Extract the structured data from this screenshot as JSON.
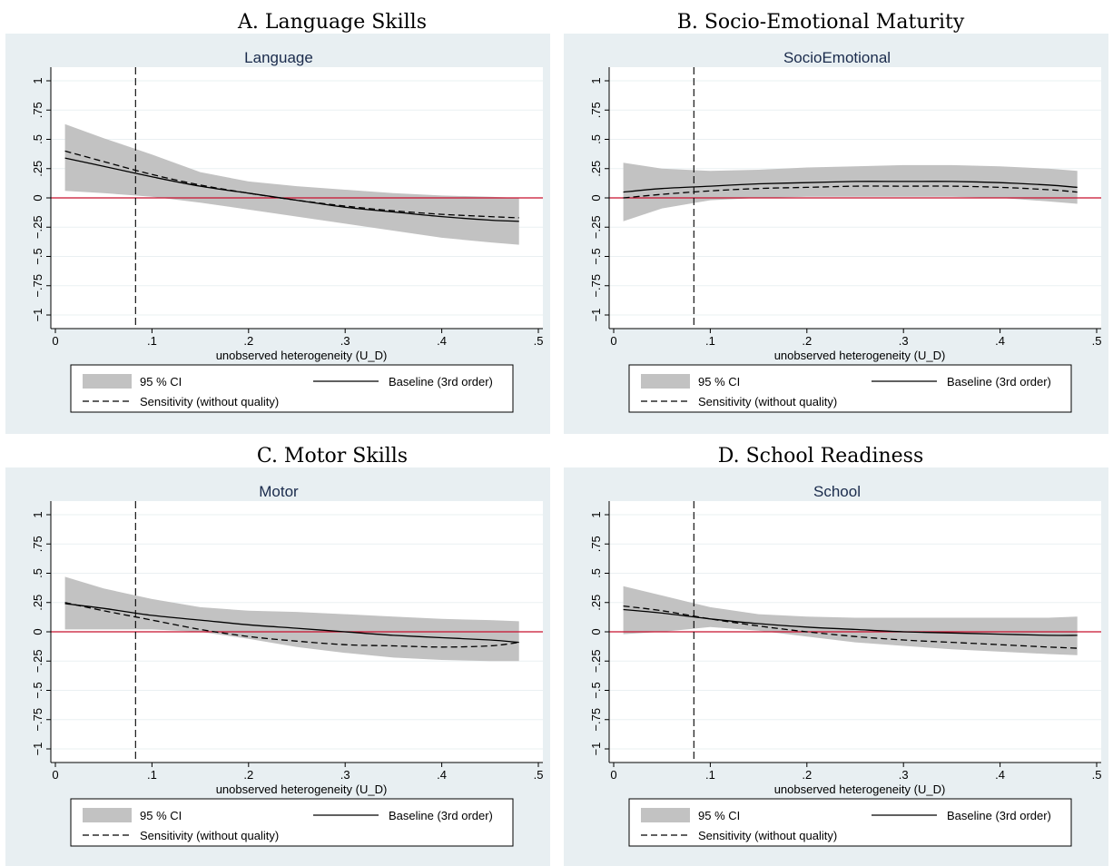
{
  "colors": {
    "graph_region": "#e8eff2",
    "plot_region": "#ffffff",
    "gridline": "#eaf0f2",
    "ci_band": "#c2c2c2",
    "baseline_line": "#000000",
    "sensitivity_line": "#000000",
    "zero_line": "#c8102e",
    "graph_title": "#1a2b4c",
    "frame": "#a9b4b8"
  },
  "legend": {
    "ci_label": "95 % CI",
    "baseline_label": "Baseline (3rd order)",
    "sensitivity_label": "Sensitivity (without quality)"
  },
  "chart_data": [
    {
      "type": "line",
      "heading": "A. Language Skills",
      "title": "Language",
      "xlabel": "unobserved heterogeneity (U_D)",
      "ylabel": "",
      "xlim": [
        0,
        0.5
      ],
      "ylim": [
        -1,
        1
      ],
      "x_ticks": [
        0,
        0.1,
        0.2,
        0.3,
        0.4,
        0.5
      ],
      "x_tick_labels": [
        "0",
        ".1",
        ".2",
        ".3",
        ".4",
        ".5"
      ],
      "y_ticks": [
        -1,
        -0.75,
        -0.5,
        -0.25,
        0,
        0.25,
        0.5,
        0.75,
        1
      ],
      "y_tick_labels": [
        "−1",
        "−.75",
        "−.5",
        "−.25",
        "0",
        ".25",
        ".5",
        ".75",
        "1"
      ],
      "reference_line_x": 0.083,
      "reference_line_y": 0,
      "x": [
        0.01,
        0.05,
        0.1,
        0.15,
        0.2,
        0.25,
        0.3,
        0.35,
        0.4,
        0.45,
        0.48
      ],
      "series": [
        {
          "name": "Baseline (3rd order)",
          "style": "solid",
          "values": [
            0.34,
            0.27,
            0.18,
            0.1,
            0.04,
            -0.02,
            -0.08,
            -0.12,
            -0.16,
            -0.19,
            -0.2
          ]
        },
        {
          "name": "Sensitivity (without quality)",
          "style": "dashed",
          "values": [
            0.4,
            0.31,
            0.2,
            0.11,
            0.04,
            -0.02,
            -0.07,
            -0.11,
            -0.14,
            -0.16,
            -0.17
          ]
        }
      ],
      "ci_lower": [
        0.06,
        0.04,
        0.01,
        -0.04,
        -0.1,
        -0.16,
        -0.22,
        -0.28,
        -0.34,
        -0.38,
        -0.4
      ],
      "ci_upper": [
        0.63,
        0.51,
        0.37,
        0.22,
        0.14,
        0.1,
        0.07,
        0.04,
        0.02,
        0.01,
        0.0
      ]
    },
    {
      "type": "line",
      "heading": "B. Socio-Emotional Maturity",
      "title": "SocioEmotional",
      "xlabel": "unobserved heterogeneity (U_D)",
      "ylabel": "",
      "xlim": [
        0,
        0.5
      ],
      "ylim": [
        -1,
        1
      ],
      "x_ticks": [
        0,
        0.1,
        0.2,
        0.3,
        0.4,
        0.5
      ],
      "x_tick_labels": [
        "0",
        ".1",
        ".2",
        ".3",
        ".4",
        ".5"
      ],
      "y_ticks": [
        -1,
        -0.75,
        -0.5,
        -0.25,
        0,
        0.25,
        0.5,
        0.75,
        1
      ],
      "y_tick_labels": [
        "−1",
        "−.75",
        "−.5",
        "−.25",
        "0",
        ".25",
        ".5",
        ".75",
        "1"
      ],
      "reference_line_x": 0.083,
      "reference_line_y": 0,
      "x": [
        0.01,
        0.05,
        0.1,
        0.15,
        0.2,
        0.25,
        0.3,
        0.35,
        0.4,
        0.45,
        0.48
      ],
      "series": [
        {
          "name": "Baseline (3rd order)",
          "style": "solid",
          "values": [
            0.05,
            0.08,
            0.1,
            0.12,
            0.13,
            0.14,
            0.14,
            0.14,
            0.13,
            0.11,
            0.09
          ]
        },
        {
          "name": "Sensitivity (without quality)",
          "style": "dashed",
          "values": [
            0.0,
            0.03,
            0.06,
            0.08,
            0.09,
            0.1,
            0.1,
            0.1,
            0.09,
            0.07,
            0.05
          ]
        }
      ],
      "ci_lower": [
        -0.2,
        -0.09,
        -0.02,
        0.0,
        0.01,
        0.01,
        0.01,
        0.01,
        0.0,
        -0.03,
        -0.05
      ],
      "ci_upper": [
        0.3,
        0.25,
        0.23,
        0.24,
        0.26,
        0.27,
        0.28,
        0.28,
        0.27,
        0.25,
        0.23
      ]
    },
    {
      "type": "line",
      "heading": "C. Motor Skills",
      "title": "Motor",
      "xlabel": "unobserved heterogeneity (U_D)",
      "ylabel": "",
      "xlim": [
        0,
        0.5
      ],
      "ylim": [
        -1,
        1
      ],
      "x_ticks": [
        0,
        0.1,
        0.2,
        0.3,
        0.4,
        0.5
      ],
      "x_tick_labels": [
        "0",
        ".1",
        ".2",
        ".3",
        ".4",
        ".5"
      ],
      "y_ticks": [
        -1,
        -0.75,
        -0.5,
        -0.25,
        0,
        0.25,
        0.5,
        0.75,
        1
      ],
      "y_tick_labels": [
        "−1",
        "−.75",
        "−.5",
        "−.25",
        "0",
        ".25",
        ".5",
        ".75",
        "1"
      ],
      "reference_line_x": 0.083,
      "reference_line_y": 0,
      "x": [
        0.01,
        0.05,
        0.1,
        0.15,
        0.2,
        0.25,
        0.3,
        0.35,
        0.4,
        0.45,
        0.48
      ],
      "series": [
        {
          "name": "Baseline (3rd order)",
          "style": "solid",
          "values": [
            0.24,
            0.2,
            0.14,
            0.1,
            0.06,
            0.03,
            0.0,
            -0.03,
            -0.05,
            -0.07,
            -0.09
          ]
        },
        {
          "name": "Sensitivity (without quality)",
          "style": "dashed",
          "values": [
            0.25,
            0.18,
            0.1,
            0.02,
            -0.04,
            -0.08,
            -0.11,
            -0.12,
            -0.13,
            -0.12,
            -0.09
          ]
        }
      ],
      "ci_lower": [
        0.02,
        0.02,
        0.02,
        0.0,
        -0.06,
        -0.13,
        -0.18,
        -0.22,
        -0.24,
        -0.25,
        -0.25
      ],
      "ci_upper": [
        0.47,
        0.37,
        0.28,
        0.21,
        0.18,
        0.17,
        0.15,
        0.13,
        0.11,
        0.1,
        0.09
      ]
    },
    {
      "type": "line",
      "heading": "D. School Readiness",
      "title": "School",
      "xlabel": "unobserved heterogeneity (U_D)",
      "ylabel": "",
      "xlim": [
        0,
        0.5
      ],
      "ylim": [
        -1,
        1
      ],
      "x_ticks": [
        0,
        0.1,
        0.2,
        0.3,
        0.4,
        0.5
      ],
      "x_tick_labels": [
        "0",
        ".1",
        ".2",
        ".3",
        ".4",
        ".5"
      ],
      "y_ticks": [
        -1,
        -0.75,
        -0.5,
        -0.25,
        0,
        0.25,
        0.5,
        0.75,
        1
      ],
      "y_tick_labels": [
        "−1",
        "−.75",
        "−.5",
        "−.25",
        "0",
        ".25",
        ".5",
        ".75",
        "1"
      ],
      "reference_line_x": 0.083,
      "reference_line_y": 0,
      "x": [
        0.01,
        0.05,
        0.1,
        0.15,
        0.2,
        0.25,
        0.3,
        0.35,
        0.4,
        0.45,
        0.48
      ],
      "series": [
        {
          "name": "Baseline (3rd order)",
          "style": "solid",
          "values": [
            0.19,
            0.16,
            0.11,
            0.07,
            0.04,
            0.02,
            0.0,
            -0.01,
            -0.02,
            -0.03,
            -0.03
          ]
        },
        {
          "name": "Sensitivity (without quality)",
          "style": "dashed",
          "values": [
            0.22,
            0.18,
            0.11,
            0.05,
            0.0,
            -0.04,
            -0.07,
            -0.09,
            -0.11,
            -0.13,
            -0.14
          ]
        }
      ],
      "ci_lower": [
        -0.02,
        0.0,
        0.04,
        0.01,
        -0.04,
        -0.09,
        -0.12,
        -0.15,
        -0.17,
        -0.19,
        -0.2
      ],
      "ci_upper": [
        0.39,
        0.31,
        0.21,
        0.15,
        0.13,
        0.12,
        0.12,
        0.12,
        0.12,
        0.12,
        0.13
      ]
    }
  ]
}
